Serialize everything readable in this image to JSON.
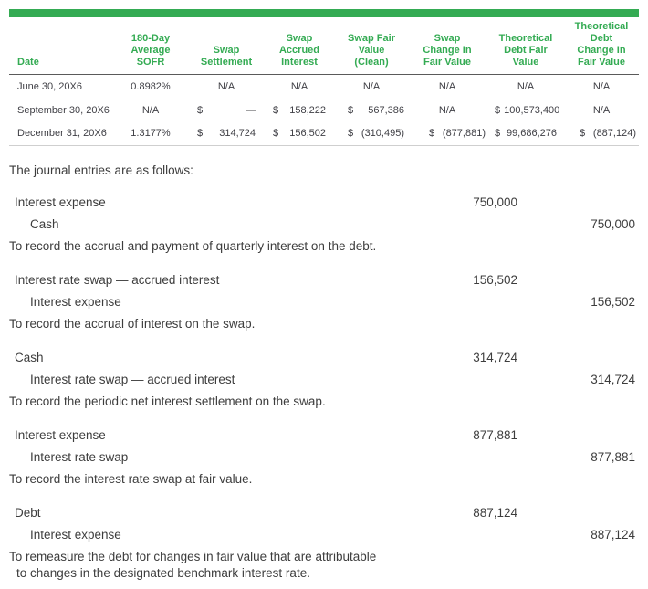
{
  "accent_green": "#34ab53",
  "table": {
    "columns": [
      {
        "id": "date",
        "lines": [
          "Date"
        ]
      },
      {
        "id": "sofr",
        "lines": [
          "180-Day",
          "Average",
          "SOFR"
        ]
      },
      {
        "id": "swap-settlement",
        "lines": [
          "Swap",
          "Settlement"
        ]
      },
      {
        "id": "swap-accrued-interest",
        "lines": [
          "Swap",
          "Accrued",
          "Interest"
        ]
      },
      {
        "id": "swap-fair-value-clean",
        "lines": [
          "Swap Fair",
          "Value",
          "(Clean)"
        ]
      },
      {
        "id": "swap-change-in-fair-value",
        "lines": [
          "Swap",
          "Change In",
          "Fair Value"
        ]
      },
      {
        "id": "theoretical-debt-fair-value",
        "lines": [
          "Theoretical",
          "Debt Fair",
          "Value"
        ]
      },
      {
        "id": "theoretical-debt-change-in-fair-value",
        "lines": [
          "Theoretical",
          "Debt",
          "Change In",
          "Fair Value"
        ]
      }
    ],
    "rows": [
      {
        "date": "June 30, 20X6",
        "cells": [
          "0.8982%",
          "N/A",
          "N/A",
          "N/A",
          "N/A",
          "N/A",
          "N/A"
        ]
      },
      {
        "date": "September 30, 20X6",
        "cells": [
          "N/A",
          {
            "v": "—"
          },
          {
            "v": "158,222"
          },
          {
            "v": "567,386"
          },
          "N/A",
          {
            "v": "100,573,400"
          },
          "N/A"
        ]
      },
      {
        "date": "December 31, 20X6",
        "cells": [
          "1.3177%",
          {
            "v": "314,724"
          },
          {
            "v": "156,502"
          },
          {
            "v": "(310,495)"
          },
          {
            "v": "(877,881)"
          },
          {
            "v": "99,686,276"
          },
          {
            "v": "(887,124)"
          }
        ]
      }
    ],
    "dollar_sign": "$"
  },
  "intro_text": "The journal entries are as follows:",
  "entries": [
    {
      "debit": {
        "account": "Interest expense",
        "amount": "750,000"
      },
      "credit": {
        "account": "Cash",
        "amount": "750,000"
      },
      "note_lines": [
        "To record the accrual and payment of quarterly interest on the debt."
      ]
    },
    {
      "debit": {
        "account": "Interest rate swap — accrued interest",
        "amount": "156,502"
      },
      "credit": {
        "account": "Interest expense",
        "amount": "156,502"
      },
      "note_lines": [
        "To record the accrual of interest on the swap."
      ]
    },
    {
      "debit": {
        "account": "Cash",
        "amount": "314,724"
      },
      "credit": {
        "account": "Interest rate swap — accrued interest",
        "amount": "314,724"
      },
      "note_lines": [
        "To record the periodic net interest settlement on the swap."
      ]
    },
    {
      "debit": {
        "account": "Interest expense",
        "amount": "877,881"
      },
      "credit": {
        "account": "Interest rate swap",
        "amount": "877,881"
      },
      "note_lines": [
        "To record the interest rate swap at fair value."
      ]
    },
    {
      "debit": {
        "account": "Debt",
        "amount": "887,124"
      },
      "credit": {
        "account": "Interest expense",
        "amount": "887,124"
      },
      "note_lines": [
        "To remeasure the debt for changes in fair value that are attributable",
        "to changes in the designated benchmark interest rate."
      ]
    }
  ]
}
